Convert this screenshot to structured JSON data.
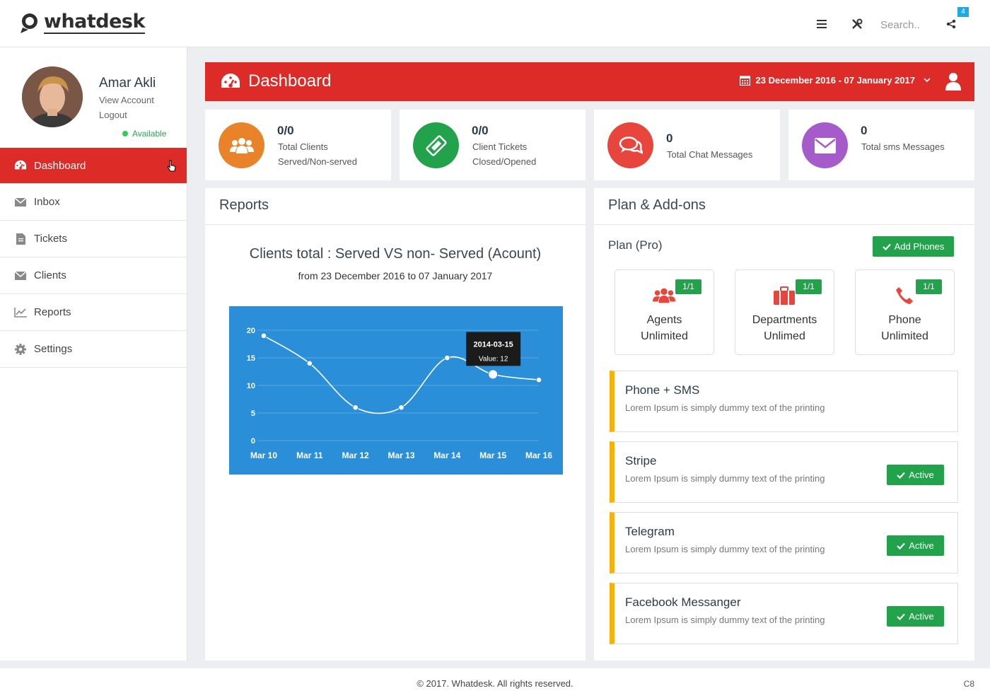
{
  "app": {
    "logo_text": "whatdesk"
  },
  "topbar": {
    "search_placeholder": "Search..",
    "notification_count": "4"
  },
  "user": {
    "name": "Amar Akli",
    "view_account": "View Account",
    "logout": "Logout",
    "status": "Available"
  },
  "sidebar": {
    "items": [
      {
        "label": "Dashboard",
        "icon": "dashboard-icon"
      },
      {
        "label": "Inbox",
        "icon": "envelope-icon"
      },
      {
        "label": "Tickets",
        "icon": "file-icon"
      },
      {
        "label": "Clients",
        "icon": "envelope-icon"
      },
      {
        "label": "Reports",
        "icon": "line-chart-icon"
      },
      {
        "label": "Settings",
        "icon": "gear-icon"
      }
    ]
  },
  "header": {
    "title": "Dashboard",
    "date_range": "23 December 2016 - 07 January 2017"
  },
  "stats": [
    {
      "value": "0/0",
      "label1": "Total Clients",
      "label2": "Served/Non-served",
      "color": "#e8832a",
      "icon": "users-icon"
    },
    {
      "value": "0/0",
      "label1": "Client Tickets",
      "label2": "Closed/Opened",
      "color": "#22a24a",
      "icon": "ticket-icon"
    },
    {
      "value": "0",
      "label1": "Total Chat Messages",
      "label2": "",
      "color": "#e8453c",
      "icon": "chat-icon"
    },
    {
      "value": "0",
      "label1": "Total sms Messages",
      "label2": "",
      "color": "#a55bc9",
      "icon": "envelope-icon"
    }
  ],
  "reports": {
    "title": "Reports",
    "chart_title": "Clients total : Served VS non- Served (Acount)",
    "chart_subtitle": "from 23 December 2016 to 07 January 2017"
  },
  "chart_data": {
    "type": "line",
    "categories": [
      "Mar 10",
      "Mar 11",
      "Mar 12",
      "Mar 13",
      "Mar 14",
      "Mar 15",
      "Mar 16"
    ],
    "values": [
      19,
      14,
      6,
      6,
      15,
      12,
      11
    ],
    "ylim": [
      0,
      20
    ],
    "yticks": [
      0,
      5,
      10,
      15,
      20
    ],
    "grid": true,
    "tooltip": {
      "date": "2014-03-15",
      "label": "Value: 12",
      "index": 5
    },
    "colors": {
      "background": "#2a8fd8",
      "line": "#ffffff"
    }
  },
  "plan": {
    "title": "Plan & Add-ons",
    "plan_name": "Plan (Pro)",
    "add_phones_label": "Add Phones",
    "boxes": [
      {
        "badge": "1/1",
        "title": "Agents",
        "sub": "Unlimited",
        "icon": "users-icon"
      },
      {
        "badge": "1/1",
        "title": "Departments",
        "sub": "Unlimed",
        "icon": "briefcase-icon"
      },
      {
        "badge": "1/1",
        "title": "Phone",
        "sub": "Unlimited",
        "icon": "phone-icon"
      }
    ],
    "addons": [
      {
        "title": "Phone + SMS",
        "desc": "Lorem Ipsum is simply dummy text of the printing",
        "status": ""
      },
      {
        "title": "Stripe",
        "desc": "Lorem Ipsum is simply dummy text of the printing",
        "status": "Active"
      },
      {
        "title": "Telegram",
        "desc": "Lorem Ipsum is simply dummy text of the printing",
        "status": "Active"
      },
      {
        "title": "Facebook Messanger",
        "desc": "Lorem Ipsum is simply dummy text of the printing",
        "status": "Active"
      }
    ]
  },
  "footer": {
    "copyright": "© 2017. Whatdesk. All rights reserved.",
    "right": "C8"
  },
  "colors": {
    "primary_red": "#dd2b27",
    "success_green": "#22a24a",
    "accent_yellow": "#f5b20a"
  }
}
